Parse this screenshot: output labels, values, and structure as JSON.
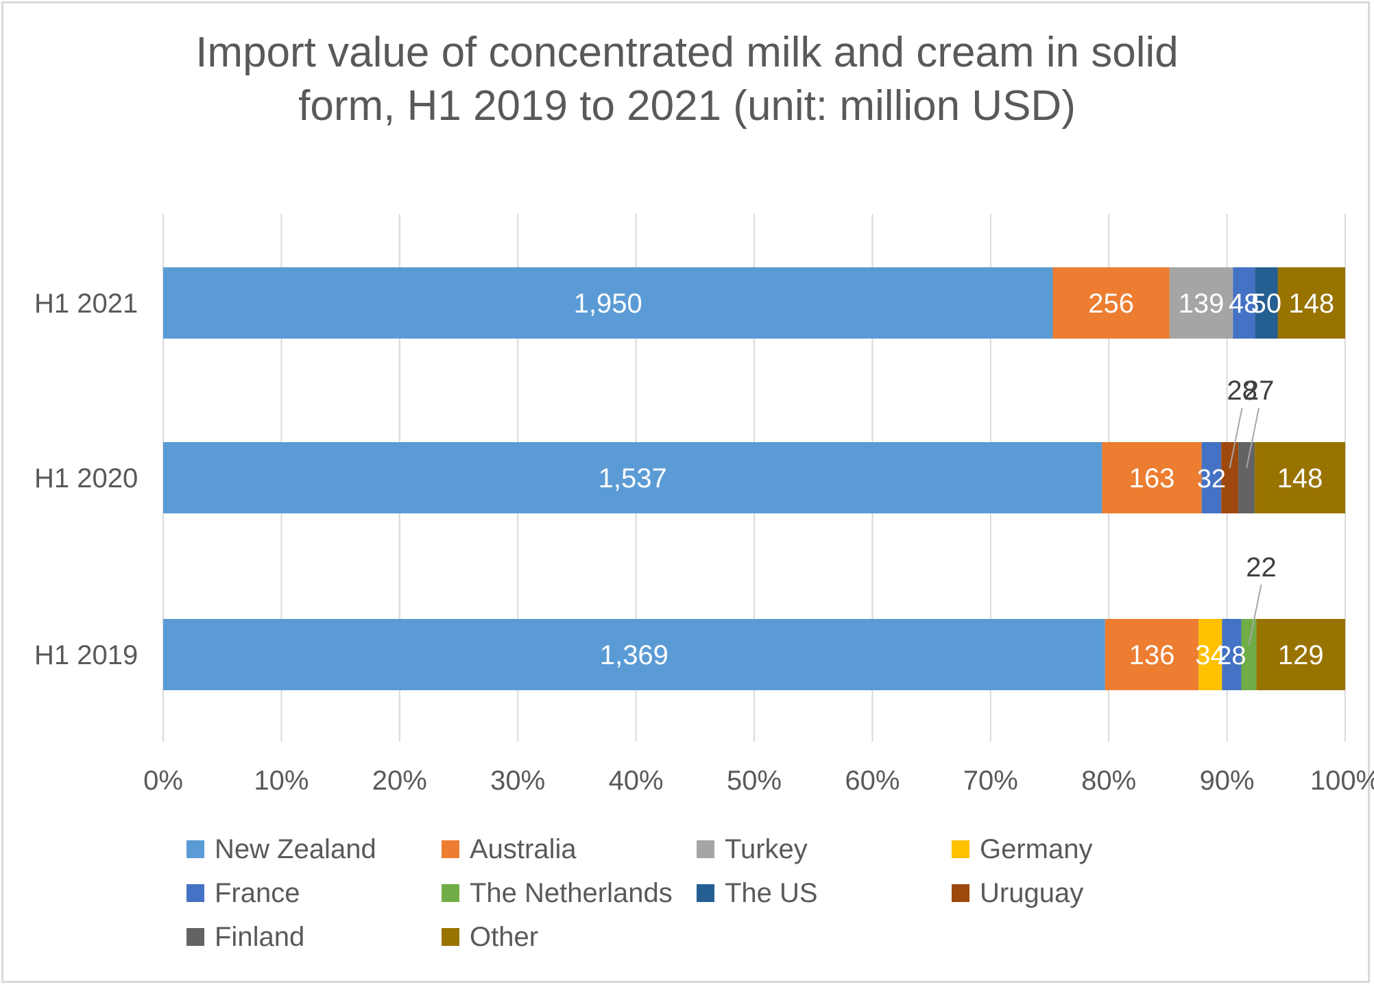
{
  "chart_data": {
    "type": "bar",
    "orientation": "horizontal",
    "stacking": "percent",
    "title": "Import value of concentrated milk and cream in solid\nform, H1 2019 to 2021 (unit: million USD)",
    "xlabel": "",
    "ylabel": "",
    "xlim": [
      0,
      100
    ],
    "x_ticks": [
      "0%",
      "10%",
      "20%",
      "30%",
      "40%",
      "50%",
      "60%",
      "70%",
      "80%",
      "90%",
      "100%"
    ],
    "grid": true,
    "legend_position": "bottom",
    "categories": [
      "H1 2021",
      "H1 2020",
      "H1 2019"
    ],
    "series": [
      {
        "name": "New Zealand",
        "color": "#5b9bd5",
        "values": [
          1950,
          1537,
          1369
        ],
        "labels": [
          "1,950",
          "1,537",
          "1,369"
        ]
      },
      {
        "name": "Australia",
        "color": "#ed7d31",
        "values": [
          256,
          163,
          136
        ],
        "labels": [
          "256",
          "163",
          "136"
        ]
      },
      {
        "name": "Turkey",
        "color": "#a5a5a5",
        "values": [
          139,
          0,
          0
        ],
        "labels": [
          "139",
          "",
          ""
        ]
      },
      {
        "name": "Germany",
        "color": "#ffc000",
        "values": [
          0,
          0,
          34
        ],
        "labels": [
          "",
          "",
          "34"
        ]
      },
      {
        "name": "France",
        "color": "#4472c4",
        "values": [
          48,
          32,
          28
        ],
        "labels": [
          "48",
          "32",
          "28"
        ]
      },
      {
        "name": "The Netherlands",
        "color": "#70ad47",
        "values": [
          0,
          0,
          22
        ],
        "labels": [
          "",
          "",
          "22"
        ]
      },
      {
        "name": "The US",
        "color": "#255e91",
        "values": [
          50,
          0,
          0
        ],
        "labels": [
          "50",
          "",
          ""
        ]
      },
      {
        "name": "Uruguay",
        "color": "#9e480e",
        "values": [
          0,
          28,
          0
        ],
        "labels": [
          "",
          "28",
          ""
        ]
      },
      {
        "name": "Finland",
        "color": "#636363",
        "values": [
          0,
          27,
          0
        ],
        "labels": [
          "",
          "27",
          ""
        ]
      },
      {
        "name": "Other",
        "color": "#997300",
        "values": [
          148,
          148,
          129
        ],
        "labels": [
          "148",
          "148",
          "129"
        ]
      }
    ],
    "label_colors": {
      "inside": "#ffffff",
      "callout": "#404040"
    },
    "gridline_color": "#d9d9d9"
  }
}
